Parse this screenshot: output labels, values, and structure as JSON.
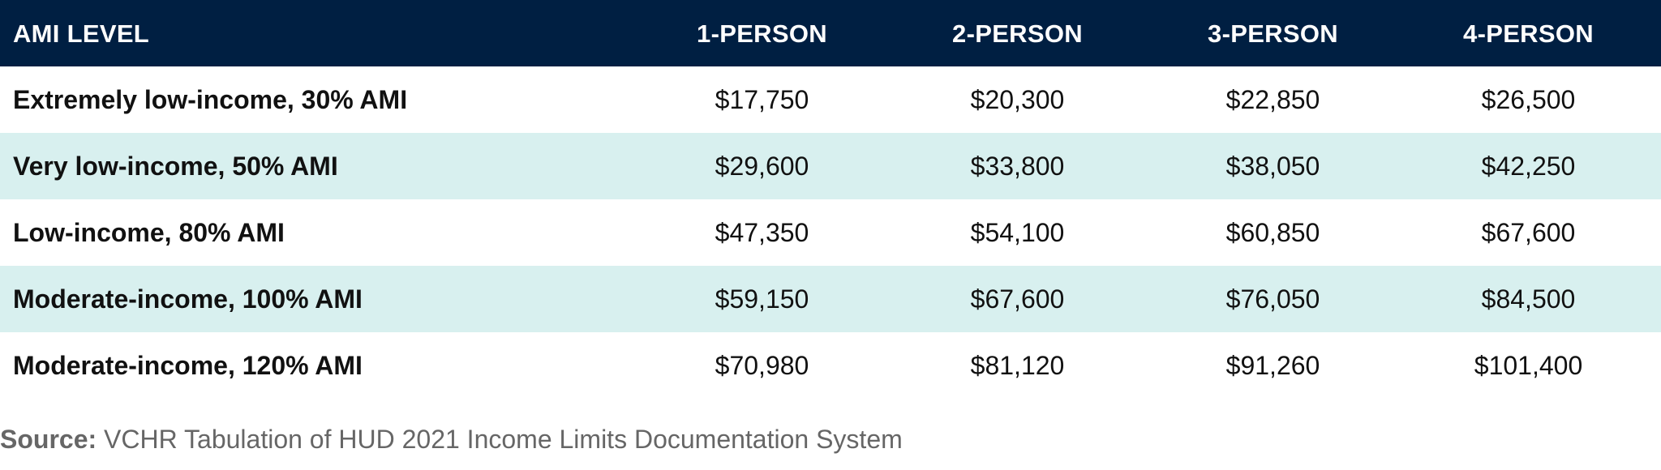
{
  "table": {
    "headers": [
      "AMI LEVEL",
      "1-PERSON",
      "2-PERSON",
      "3-PERSON",
      "4-PERSON"
    ],
    "rows": [
      {
        "level": "Extremely low-income, 30% AMI",
        "values": [
          "$17,750",
          "$20,300",
          "$22,850",
          "$26,500"
        ]
      },
      {
        "level": "Very low-income, 50% AMI",
        "values": [
          "$29,600",
          "$33,800",
          "$38,050",
          "$42,250"
        ]
      },
      {
        "level": "Low-income, 80% AMI",
        "values": [
          "$47,350",
          "$54,100",
          "$60,850",
          "$67,600"
        ]
      },
      {
        "level": "Moderate-income, 100% AMI",
        "values": [
          "$59,150",
          "$67,600",
          "$76,050",
          "$84,500"
        ]
      },
      {
        "level": "Moderate-income, 120% AMI",
        "values": [
          "$70,980",
          "$81,120",
          "$91,260",
          "$101,400"
        ]
      }
    ]
  },
  "source": {
    "label": "Source:",
    "text": "VCHR Tabulation of HUD 2021 Income Limits Documentation System"
  },
  "colors": {
    "header_bg": "#001f42",
    "header_text": "#ffffff",
    "alt_row_bg": "#d8f0ef",
    "source_text": "#666666"
  }
}
